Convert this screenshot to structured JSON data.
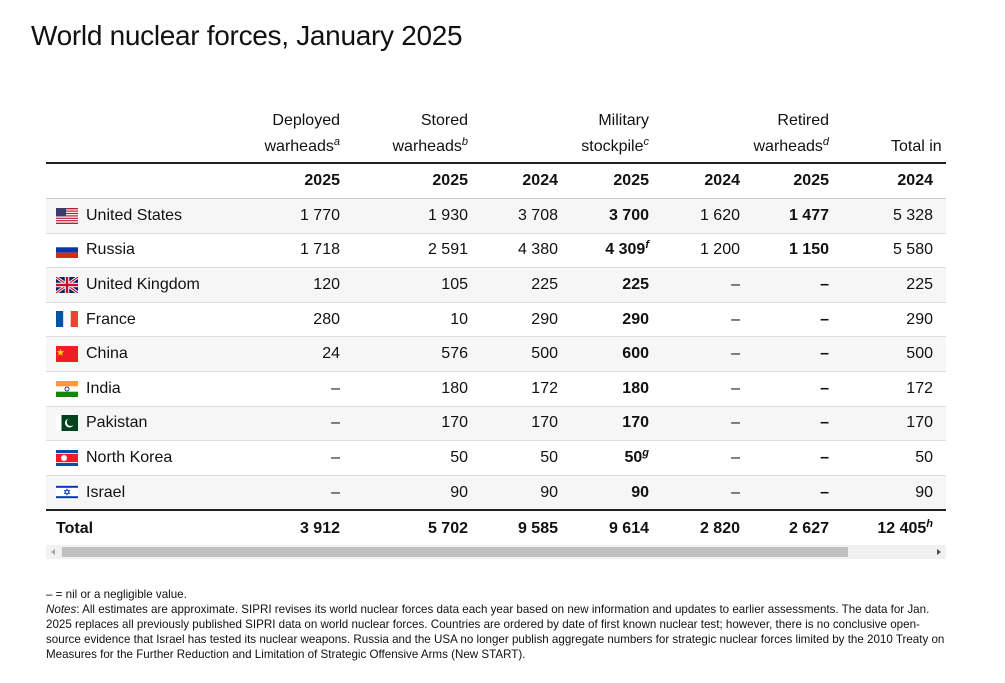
{
  "header": {
    "title": "World nuclear forces, January 2025"
  },
  "table": {
    "groups": [
      {
        "lines": [
          "Deployed",
          "warheads"
        ],
        "note": "a"
      },
      {
        "lines": [
          "Stored",
          "warheads"
        ],
        "note": "b"
      },
      {
        "lines": [
          "Military",
          "stockpile"
        ],
        "note": "c"
      },
      {
        "lines": [
          "Retired",
          "warheads"
        ],
        "note": "d"
      },
      {
        "lines": [
          "Total in"
        ]
      }
    ],
    "years": [
      "2025",
      "2025",
      "2024",
      "2025",
      "2024",
      "2025",
      "2024"
    ],
    "rows": [
      {
        "country": "United States",
        "cells": [
          "1 770",
          "1 930",
          "3 708",
          "3 700",
          "1 620",
          "1 477",
          "5 328"
        ]
      },
      {
        "country": "Russia",
        "cells": [
          "1 718",
          "2 591",
          "4 380",
          {
            "text": "4 309",
            "note": "f"
          },
          "1 200",
          "1 150",
          "5 580"
        ]
      },
      {
        "country": "United Kingdom",
        "cells": [
          "120",
          "105",
          "225",
          "225",
          "–",
          "–",
          "225"
        ]
      },
      {
        "country": "France",
        "cells": [
          "280",
          "10",
          "290",
          "290",
          "–",
          "–",
          "290"
        ]
      },
      {
        "country": "China",
        "cells": [
          "24",
          "576",
          "500",
          "600",
          "–",
          "–",
          "500"
        ]
      },
      {
        "country": "India",
        "cells": [
          "–",
          "180",
          "172",
          "180",
          "–",
          "–",
          "172"
        ]
      },
      {
        "country": "Pakistan",
        "cells": [
          "–",
          "170",
          "170",
          "170",
          "–",
          "–",
          "170"
        ]
      },
      {
        "country": "North Korea",
        "cells": [
          "–",
          "50",
          "50",
          {
            "text": "50",
            "note": "g"
          },
          "–",
          "–",
          "50"
        ]
      },
      {
        "country": "Israel",
        "cells": [
          "–",
          "90",
          "90",
          "90",
          "–",
          "–",
          "90"
        ]
      }
    ],
    "total": {
      "label": "Total",
      "cells": [
        "3 912",
        "5 702",
        "9 585",
        "9 614",
        "2 820",
        "2 627",
        {
          "text": "12 405",
          "note": "h"
        }
      ]
    }
  },
  "footer": {
    "legend": "– = nil or a negligible value.",
    "notes_label": "Notes",
    "notes_text": ": All estimates are approximate. SIPRI revises its world nuclear forces data each year based on new information and updates to earlier assessments. The data for Jan. 2025 replaces all previously published SIPRI data on world nuclear forces. Countries are ordered by date of first known nuclear test; however, there is no conclusive open-source evidence that Israel has tested its nuclear weapons. Russia and the USA no longer publish aggregate numbers for strategic nuclear forces limited by the 2010 Treaty on Measures for the Further Reduction and Limitation of Strategic Offensive Arms (New START)."
  }
}
